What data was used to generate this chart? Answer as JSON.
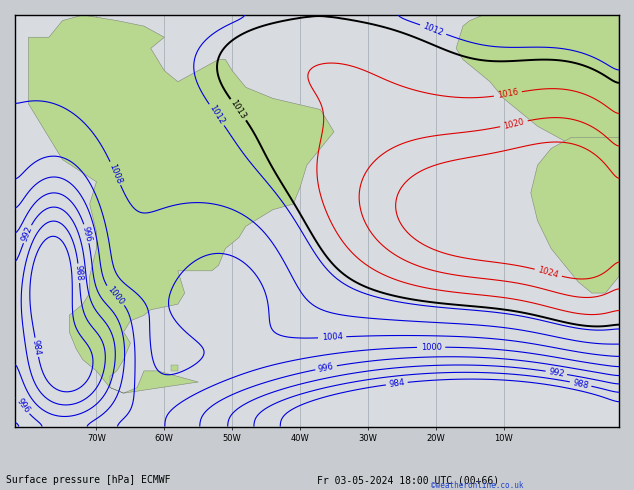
{
  "title": "Surface pressure [hPa] ECMWF",
  "date_label": "Fr 03-05-2024 18:00 UTC (00+66)",
  "credit": "©weatheronline.co.uk",
  "figsize": [
    6.34,
    4.9
  ],
  "dpi": 100,
  "background_land": "#b8d890",
  "background_ocean": "#d8dce0",
  "grid_color": "#a0a8b0",
  "contour_blue": "#0000dd",
  "contour_black": "#000000",
  "contour_red": "#dd0000",
  "label_fontsize": 6,
  "title_fontsize": 7,
  "lon_min": -82,
  "lon_max": 7,
  "lat_min": -62,
  "lat_max": 12,
  "lon_ticks": [
    -70,
    -60,
    -50,
    -40,
    -30,
    -20,
    -10
  ],
  "lat_ticks": [],
  "pressure_base": 1010.0,
  "contour_interval": 4
}
